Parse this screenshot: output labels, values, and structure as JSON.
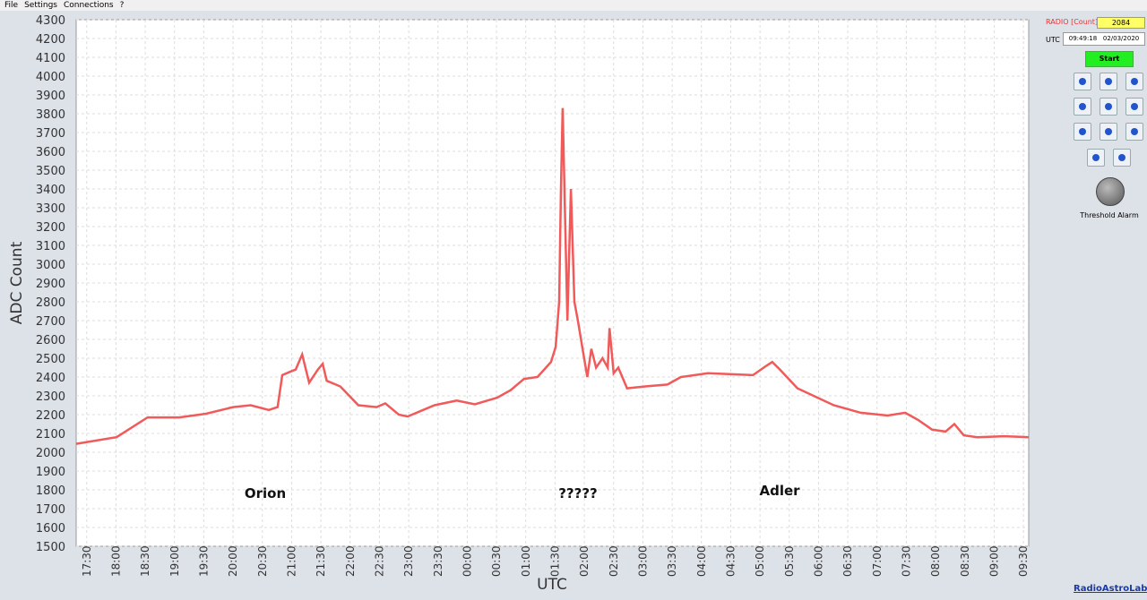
{
  "menu": [
    "File",
    "Settings",
    "Connections",
    "?"
  ],
  "panel": {
    "radio_label": "RADIO [Count]",
    "radio_value": 2084,
    "utc_label": "UTC",
    "utc_value": "09:49:18   02/03/2020",
    "start": "Start",
    "alarm_label": "Threshold Alarm"
  },
  "brand": "RadioAstroLab",
  "chart_data": {
    "type": "line",
    "xlabel": "UTC",
    "ylabel": "ADC Count",
    "color": "#f05a5a",
    "grid": true,
    "annotations": [
      "Orion",
      "?????",
      "Adler"
    ],
    "xlim": [
      17.32,
      33.59
    ],
    "ylim": [
      1500,
      4300
    ],
    "yticks": [
      1500,
      1600,
      1700,
      1800,
      1900,
      2000,
      2100,
      2200,
      2300,
      2400,
      2500,
      2600,
      2700,
      2800,
      2900,
      3000,
      3100,
      3200,
      3300,
      3400,
      3500,
      3600,
      3700,
      3800,
      3900,
      4000,
      4100,
      4200,
      4300
    ],
    "xticks": [
      {
        "value": 17.5,
        "label": "17:30"
      },
      {
        "value": 18,
        "label": "18:00"
      },
      {
        "value": 18.5,
        "label": "18:30"
      },
      {
        "value": 19,
        "label": "19:00"
      },
      {
        "value": 19.5,
        "label": "19:30"
      },
      {
        "value": 20,
        "label": "20:00"
      },
      {
        "value": 20.5,
        "label": "20:30"
      },
      {
        "value": 21,
        "label": "21:00"
      },
      {
        "value": 21.5,
        "label": "21:30"
      },
      {
        "value": 22,
        "label": "22:00"
      },
      {
        "value": 22.5,
        "label": "22:30"
      },
      {
        "value": 23,
        "label": "23:00"
      },
      {
        "value": 23.5,
        "label": "23:30"
      },
      {
        "value": 24,
        "label": "00:00"
      },
      {
        "value": 24.5,
        "label": "00:30"
      },
      {
        "value": 25,
        "label": "01:00"
      },
      {
        "value": 25.5,
        "label": "01:30"
      },
      {
        "value": 26,
        "label": "02:00"
      },
      {
        "value": 26.5,
        "label": "02:30"
      },
      {
        "value": 27,
        "label": "03:00"
      },
      {
        "value": 27.5,
        "label": "03:30"
      },
      {
        "value": 28,
        "label": "04:00"
      },
      {
        "value": 28.5,
        "label": "04:30"
      },
      {
        "value": 29,
        "label": "05:00"
      },
      {
        "value": 29.5,
        "label": "05:30"
      },
      {
        "value": 30,
        "label": "06:00"
      },
      {
        "value": 30.5,
        "label": "06:30"
      },
      {
        "value": 31,
        "label": "07:00"
      },
      {
        "value": 31.5,
        "label": "07:30"
      },
      {
        "value": 32,
        "label": "08:00"
      },
      {
        "value": 32.5,
        "label": "08:30"
      },
      {
        "value": 33,
        "label": "09:00"
      },
      {
        "value": 33.5,
        "label": "09:30"
      }
    ],
    "x": [
      17.32,
      18.01,
      18.54,
      19.08,
      19.54,
      20.0,
      20.3,
      20.61,
      20.76,
      20.84,
      20.99,
      21.07,
      21.18,
      21.3,
      21.45,
      21.53,
      21.6,
      21.83,
      22.14,
      22.45,
      22.6,
      22.83,
      22.98,
      23.21,
      23.44,
      23.82,
      24.13,
      24.51,
      24.74,
      24.97,
      25.2,
      25.43,
      25.51,
      25.57,
      25.6,
      25.63,
      25.66,
      25.71,
      25.77,
      25.83,
      25.89,
      25.97,
      26.05,
      26.12,
      26.2,
      26.31,
      26.4,
      26.43,
      26.5,
      26.58,
      26.73,
      27.04,
      27.42,
      27.65,
      28.11,
      28.88,
      29.11,
      29.21,
      29.34,
      29.64,
      30.26,
      30.72,
      31.18,
      31.48,
      31.71,
      31.94,
      32.17,
      32.32,
      32.48,
      32.71,
      33.17,
      33.59
    ],
    "values": [
      2045,
      2080,
      2185,
      2185,
      2205,
      2240,
      2250,
      2225,
      2240,
      2410,
      2430,
      2440,
      2520,
      2370,
      2440,
      2470,
      2380,
      2350,
      2250,
      2240,
      2260,
      2200,
      2190,
      2220,
      2250,
      2275,
      2255,
      2290,
      2330,
      2390,
      2400,
      2480,
      2560,
      2800,
      3400,
      3830,
      3400,
      2700,
      3400,
      2800,
      2700,
      2550,
      2400,
      2550,
      2450,
      2500,
      2450,
      2660,
      2420,
      2450,
      2340,
      2350,
      2360,
      2400,
      2420,
      2410,
      2460,
      2480,
      2440,
      2340,
      2250,
      2210,
      2195,
      2210,
      2170,
      2120,
      2110,
      2150,
      2090,
      2080,
      2085,
      2080
    ]
  }
}
